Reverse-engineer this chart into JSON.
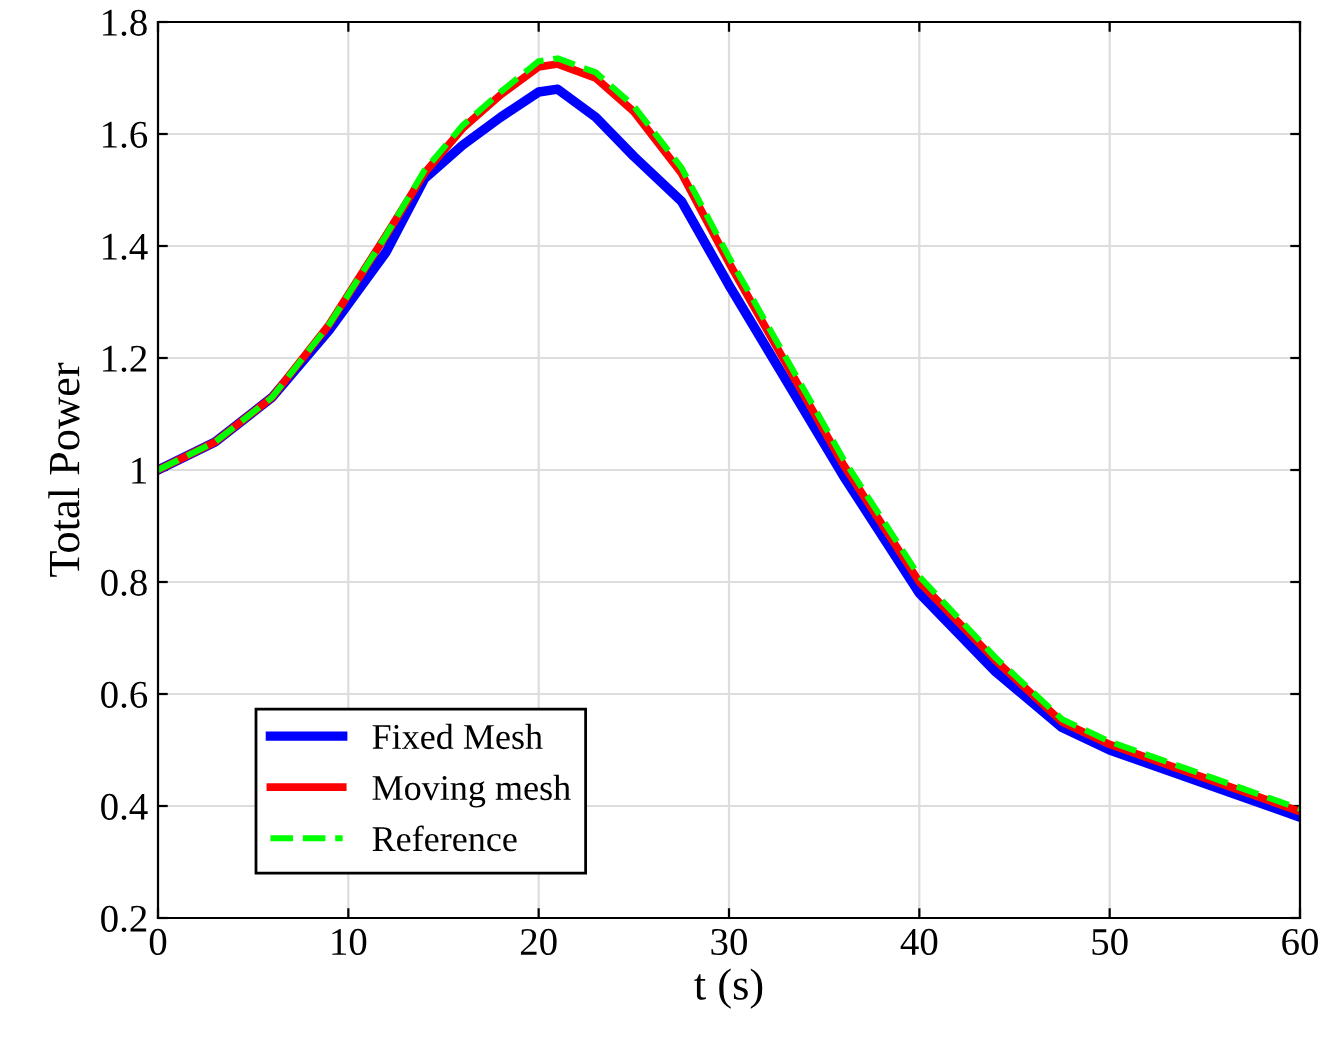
{
  "chart_data": {
    "type": "line",
    "xlabel": "t (s)",
    "ylabel": "Total Power",
    "xlim": [
      0,
      60
    ],
    "ylim": [
      0.2,
      1.8
    ],
    "xticks": [
      0,
      10,
      20,
      30,
      40,
      50,
      60
    ],
    "yticks": [
      0.2,
      0.4,
      0.6,
      0.8,
      1,
      1.2,
      1.4,
      1.6,
      1.8
    ],
    "grid": true,
    "legend": "bottom left",
    "series": [
      {
        "name": "Fixed Mesh",
        "color": "#0000ff",
        "line_style": "solid",
        "x": [
          0,
          3,
          6,
          9,
          12,
          14,
          16,
          18,
          20,
          21,
          23,
          25,
          27.5,
          30,
          33,
          36,
          40,
          44,
          47.5,
          50,
          55,
          60
        ],
        "values": [
          1.0,
          1.05,
          1.13,
          1.25,
          1.39,
          1.52,
          1.58,
          1.63,
          1.675,
          1.68,
          1.63,
          1.56,
          1.48,
          1.33,
          1.16,
          0.99,
          0.78,
          0.64,
          0.54,
          0.5,
          0.44,
          0.38
        ]
      },
      {
        "name": "Moving mesh",
        "color": "#ff0000",
        "line_style": "solid",
        "x": [
          0,
          3,
          6,
          9,
          12,
          14,
          16,
          18,
          20,
          21,
          23,
          25,
          27.5,
          30,
          33,
          36,
          40,
          44,
          47.5,
          50,
          55,
          60
        ],
        "values": [
          1.0,
          1.05,
          1.13,
          1.26,
          1.42,
          1.53,
          1.61,
          1.67,
          1.72,
          1.725,
          1.7,
          1.64,
          1.53,
          1.37,
          1.19,
          1.01,
          0.8,
          0.66,
          0.55,
          0.51,
          0.45,
          0.39
        ]
      },
      {
        "name": "Reference",
        "color": "#00ff00",
        "line_style": "dashed",
        "x": [
          0,
          3,
          6,
          9,
          12,
          14,
          16,
          18,
          20,
          21,
          23,
          25,
          27.5,
          30,
          33,
          36,
          40,
          44,
          47.5,
          50,
          55,
          60
        ],
        "values": [
          1.0,
          1.05,
          1.13,
          1.26,
          1.42,
          1.535,
          1.615,
          1.675,
          1.73,
          1.735,
          1.71,
          1.65,
          1.54,
          1.38,
          1.2,
          1.02,
          0.81,
          0.665,
          0.555,
          0.515,
          0.455,
          0.395
        ]
      }
    ]
  }
}
